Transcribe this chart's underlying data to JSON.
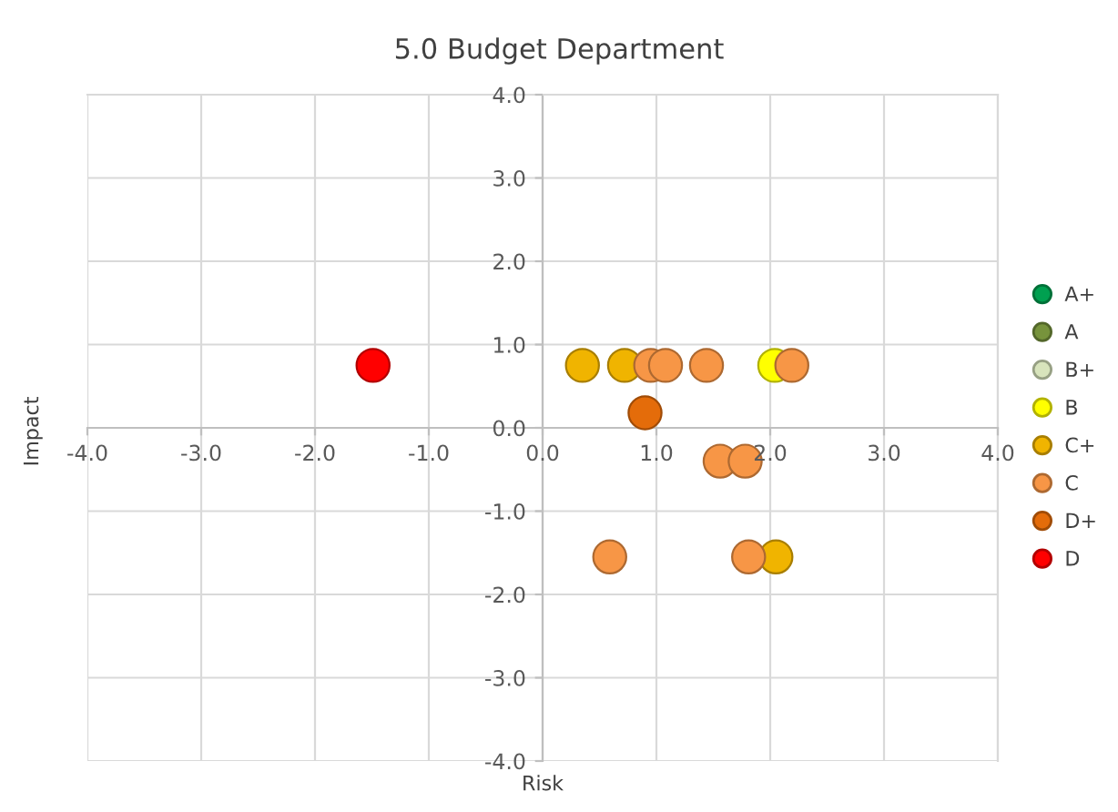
{
  "chart_data": {
    "type": "scatter",
    "title": "5.0 Budget Department",
    "xlabel": "Risk",
    "ylabel": "Impact",
    "xlim": [
      -4,
      4
    ],
    "ylim": [
      -4,
      4
    ],
    "xticks": [
      {
        "value": -4,
        "label": "-4.0"
      },
      {
        "value": -3,
        "label": "-3.0"
      },
      {
        "value": -2,
        "label": "-2.0"
      },
      {
        "value": -1,
        "label": "-1.0"
      },
      {
        "value": 0,
        "label": "0.0"
      },
      {
        "value": 1,
        "label": "1.0"
      },
      {
        "value": 2,
        "label": "2.0"
      },
      {
        "value": 3,
        "label": "3.0"
      },
      {
        "value": 4,
        "label": "4.0"
      }
    ],
    "yticks": [
      {
        "value": -4,
        "label": "-4.0"
      },
      {
        "value": -3,
        "label": "-3.0"
      },
      {
        "value": -2,
        "label": "-2.0"
      },
      {
        "value": -1,
        "label": "-1.0"
      },
      {
        "value": 0,
        "label": "0.0"
      },
      {
        "value": 1,
        "label": "1.0"
      },
      {
        "value": 2,
        "label": "2.0"
      },
      {
        "value": 3,
        "label": "3.0"
      },
      {
        "value": 4,
        "label": "4.0"
      }
    ],
    "grid": true,
    "legend": "right",
    "marker": "circle",
    "series": [
      {
        "name": "A+",
        "color": "#00a050"
      },
      {
        "name": "A",
        "color": "#77933c"
      },
      {
        "name": "B+",
        "color": "#d8e4bc"
      },
      {
        "name": "B",
        "color": "#ffff00",
        "x": [
          2.04
        ],
        "values": [
          0.75
        ]
      },
      {
        "name": "C+",
        "color": "#f0b400",
        "x": [
          0.35,
          0.72,
          2.05
        ],
        "values": [
          0.75,
          0.75,
          -1.55
        ]
      },
      {
        "name": "C",
        "color": "#f79646",
        "x": [
          0.95,
          1.08,
          1.44,
          2.19,
          1.56,
          1.78,
          0.59,
          1.81
        ],
        "values": [
          0.75,
          0.75,
          0.75,
          0.75,
          -0.4,
          -0.4,
          -1.55,
          -1.55
        ]
      },
      {
        "name": "D+",
        "color": "#e46c0a",
        "x": [
          0.9
        ],
        "values": [
          0.18
        ]
      },
      {
        "name": "D",
        "color": "#ff0000",
        "x": [
          -1.49
        ],
        "values": [
          0.75
        ]
      }
    ]
  }
}
